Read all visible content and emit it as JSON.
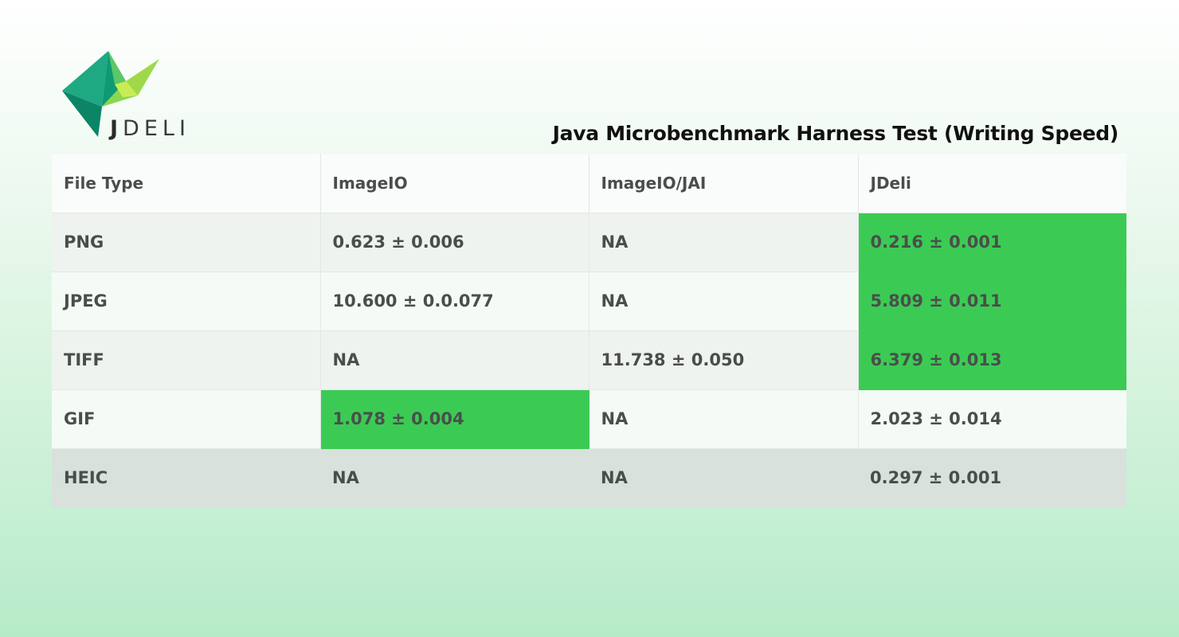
{
  "logo": {
    "text_initial": "J",
    "text_rest": "DELI",
    "colors": [
      "#1aa37a",
      "#21b886",
      "#7fcf4a",
      "#c7e84e",
      "#0e8c6b"
    ]
  },
  "chart_data": {
    "type": "table",
    "title": "Java Microbenchmark Harness Test (Writing Speed)",
    "columns": [
      "File Type",
      "ImageIO",
      "ImageIO/JAI",
      "JDeli"
    ],
    "rows": [
      {
        "cells": [
          "PNG",
          "0.623 ± 0.006",
          "NA",
          "0.216 ± 0.001"
        ],
        "best_col": 3
      },
      {
        "cells": [
          "JPEG",
          "10.600 ± 0.0.077",
          "NA",
          "5.809 ± 0.011"
        ],
        "best_col": 3
      },
      {
        "cells": [
          "TIFF",
          "NA",
          "11.738 ± 0.050",
          "6.379 ± 0.013"
        ],
        "best_col": 3
      },
      {
        "cells": [
          "GIF",
          "1.078 ± 0.004",
          "NA",
          "2.023 ± 0.014"
        ],
        "best_col": 1
      },
      {
        "cells": [
          "HEIC",
          "NA",
          "NA",
          "0.297 ± 0.001"
        ],
        "best_col": -1
      }
    ],
    "highlight_color": "#3bcb54"
  }
}
